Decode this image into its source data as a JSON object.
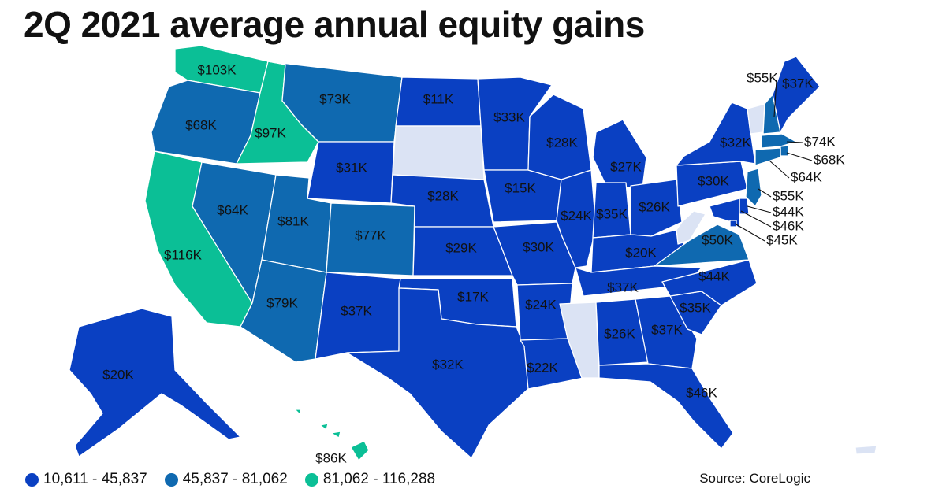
{
  "title": "2Q 2021 average annual equity gains",
  "source": "Source: CoreLogic",
  "colors": {
    "low": "#0a40c2",
    "mid": "#0f69b0",
    "high": "#0bbf96",
    "no_data": "#dbe3f4",
    "border": "#ffffff"
  },
  "legend": [
    {
      "label": "10,611 - 45,837",
      "color": "#0a40c2"
    },
    {
      "label": "45,837 - 81,062",
      "color": "#0f69b0"
    },
    {
      "label": "81,062 - 116,288",
      "color": "#0bbf96"
    }
  ],
  "states": [
    {
      "name": "WA",
      "value": "$103K",
      "tier": "high"
    },
    {
      "name": "OR",
      "value": "$68K",
      "tier": "mid"
    },
    {
      "name": "CA",
      "value": "$116K",
      "tier": "high"
    },
    {
      "name": "ID",
      "value": "$97K",
      "tier": "high"
    },
    {
      "name": "NV",
      "value": "$64K",
      "tier": "mid"
    },
    {
      "name": "MT",
      "value": "$73K",
      "tier": "mid"
    },
    {
      "name": "WY",
      "value": "$31K",
      "tier": "low"
    },
    {
      "name": "UT",
      "value": "$81K",
      "tier": "mid"
    },
    {
      "name": "AZ",
      "value": "$79K",
      "tier": "mid"
    },
    {
      "name": "CO",
      "value": "$77K",
      "tier": "mid"
    },
    {
      "name": "NM",
      "value": "$37K",
      "tier": "low"
    },
    {
      "name": "ND",
      "value": "$11K",
      "tier": "low"
    },
    {
      "name": "SD",
      "value": "",
      "tier": "none"
    },
    {
      "name": "NE",
      "value": "$28K",
      "tier": "low"
    },
    {
      "name": "KS",
      "value": "$29K",
      "tier": "low"
    },
    {
      "name": "OK",
      "value": "$17K",
      "tier": "low"
    },
    {
      "name": "TX",
      "value": "$32K",
      "tier": "low"
    },
    {
      "name": "MN",
      "value": "$33K",
      "tier": "low"
    },
    {
      "name": "IA",
      "value": "$15K",
      "tier": "low"
    },
    {
      "name": "MO",
      "value": "$30K",
      "tier": "low"
    },
    {
      "name": "AR",
      "value": "$24K",
      "tier": "low"
    },
    {
      "name": "LA",
      "value": "$22K",
      "tier": "low"
    },
    {
      "name": "WI",
      "value": "$28K",
      "tier": "low"
    },
    {
      "name": "IL",
      "value": "$24K",
      "tier": "low"
    },
    {
      "name": "MI",
      "value": "$27K",
      "tier": "low"
    },
    {
      "name": "IN",
      "value": "$35K",
      "tier": "low"
    },
    {
      "name": "OH",
      "value": "$26K",
      "tier": "low"
    },
    {
      "name": "KY",
      "value": "$20K",
      "tier": "low"
    },
    {
      "name": "TN",
      "value": "$37K",
      "tier": "low"
    },
    {
      "name": "MS",
      "value": "",
      "tier": "none"
    },
    {
      "name": "AL",
      "value": "$26K",
      "tier": "low"
    },
    {
      "name": "GA",
      "value": "$37K",
      "tier": "low"
    },
    {
      "name": "FL",
      "value": "$46K",
      "tier": "low"
    },
    {
      "name": "SC",
      "value": "$35K",
      "tier": "low"
    },
    {
      "name": "NC",
      "value": "$44K",
      "tier": "low"
    },
    {
      "name": "VA",
      "value": "$50K",
      "tier": "mid"
    },
    {
      "name": "WV",
      "value": "",
      "tier": "none"
    },
    {
      "name": "PA",
      "value": "$30K",
      "tier": "low"
    },
    {
      "name": "NY",
      "value": "$32K",
      "tier": "low"
    },
    {
      "name": "VT",
      "value": "",
      "tier": "none"
    },
    {
      "name": "NH",
      "value": "$55K",
      "tier": "mid"
    },
    {
      "name": "ME",
      "value": "$37K",
      "tier": "low"
    },
    {
      "name": "MA",
      "value": "$74K",
      "tier": "mid"
    },
    {
      "name": "RI",
      "value": "$68K",
      "tier": "mid"
    },
    {
      "name": "CT",
      "value": "$64K",
      "tier": "mid"
    },
    {
      "name": "NJ",
      "value": "$55K",
      "tier": "mid"
    },
    {
      "name": "DE",
      "value": "$44K",
      "tier": "low"
    },
    {
      "name": "MD",
      "value": "$46K",
      "tier": "low"
    },
    {
      "name": "DC",
      "value": "$45K",
      "tier": "low"
    },
    {
      "name": "AK",
      "value": "$20K",
      "tier": "low"
    },
    {
      "name": "HI",
      "value": "$86K",
      "tier": "high"
    },
    {
      "name": "PR",
      "value": "",
      "tier": "none"
    }
  ]
}
